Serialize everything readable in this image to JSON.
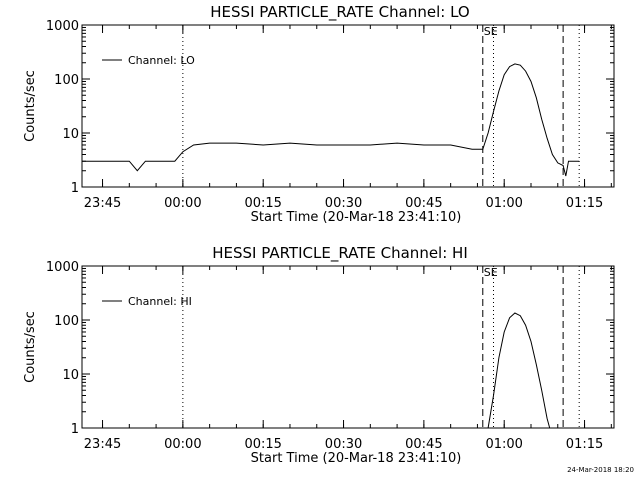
{
  "footer": {
    "timestamp": "24-Mar-2018 18:20"
  },
  "chart_data": [
    {
      "type": "line",
      "title": "HESSI PARTICLE_RATE Channel: LO",
      "xlabel": "Start Time (20-Mar-18 23:41:10)",
      "ylabel": "Counts/sec",
      "yscale": "log",
      "ylim": [
        1,
        1000
      ],
      "xlim": [
        "23:41:10",
        "01:20:30"
      ],
      "xticks": [
        "23:45",
        "00:00",
        "00:15",
        "00:30",
        "00:45",
        "01:00",
        "01:15"
      ],
      "yticks": [
        "1",
        "10",
        "100",
        "1000"
      ],
      "legend": {
        "position": "top-left",
        "entries": [
          "Channel: LO"
        ]
      },
      "markers": [
        {
          "time": "00:00",
          "style": "dotted"
        },
        {
          "time": "00:56",
          "style": "dashed",
          "label": "SE"
        },
        {
          "time": "00:58",
          "style": "dotted"
        },
        {
          "time": "01:11",
          "style": "dashed"
        },
        {
          "time": "01:14",
          "style": "dotted"
        }
      ],
      "series": [
        {
          "name": "Channel: LO",
          "points": [
            [
              "23:41:10",
              3
            ],
            [
              "23:44:00",
              3
            ],
            [
              "23:47:00",
              3
            ],
            [
              "23:50:00",
              3
            ],
            [
              "23:51:30",
              2
            ],
            [
              "23:53:00",
              3
            ],
            [
              "23:56:00",
              3
            ],
            [
              "23:58:30",
              3
            ],
            [
              "00:00:00",
              4.5
            ],
            [
              "00:02:00",
              6
            ],
            [
              "00:05:00",
              6.5
            ],
            [
              "00:10:00",
              6.5
            ],
            [
              "00:15:00",
              6
            ],
            [
              "00:20:00",
              6.5
            ],
            [
              "00:25:00",
              6
            ],
            [
              "00:30:00",
              6
            ],
            [
              "00:35:00",
              6
            ],
            [
              "00:40:00",
              6.5
            ],
            [
              "00:45:00",
              6
            ],
            [
              "00:50:00",
              6
            ],
            [
              "00:54:00",
              5
            ],
            [
              "00:56:00",
              5
            ],
            [
              "00:57:00",
              10
            ],
            [
              "00:58:00",
              25
            ],
            [
              "00:59:00",
              60
            ],
            [
              "01:00:00",
              120
            ],
            [
              "01:01:00",
              170
            ],
            [
              "01:02:00",
              190
            ],
            [
              "01:03:00",
              180
            ],
            [
              "01:04:00",
              140
            ],
            [
              "01:05:00",
              90
            ],
            [
              "01:06:00",
              45
            ],
            [
              "01:07:00",
              18
            ],
            [
              "01:08:00",
              8
            ],
            [
              "01:09:00",
              4
            ],
            [
              "01:10:00",
              2.8
            ],
            [
              "01:11:00",
              2.5
            ],
            [
              "01:11:30",
              1.6
            ],
            [
              "01:12:00",
              3
            ],
            [
              "01:14:00",
              3
            ]
          ]
        }
      ]
    },
    {
      "type": "line",
      "title": "HESSI PARTICLE_RATE Channel: HI",
      "xlabel": "Start Time (20-Mar-18 23:41:10)",
      "ylabel": "Counts/sec",
      "yscale": "log",
      "ylim": [
        1,
        1000
      ],
      "xlim": [
        "23:41:10",
        "01:20:30"
      ],
      "xticks": [
        "23:45",
        "00:00",
        "00:15",
        "00:30",
        "00:45",
        "01:00",
        "01:15"
      ],
      "yticks": [
        "1",
        "10",
        "100",
        "1000"
      ],
      "legend": {
        "position": "top-left",
        "entries": [
          "Channel: HI"
        ]
      },
      "markers": [
        {
          "time": "00:00",
          "style": "dotted"
        },
        {
          "time": "00:56",
          "style": "dashed",
          "label": "SE"
        },
        {
          "time": "00:58",
          "style": "dotted"
        },
        {
          "time": "01:11",
          "style": "dashed"
        },
        {
          "time": "01:14",
          "style": "dotted"
        }
      ],
      "series": [
        {
          "name": "Channel: HI",
          "points": [
            [
              "00:57:00",
              1
            ],
            [
              "00:58:00",
              4
            ],
            [
              "00:59:00",
              20
            ],
            [
              "01:00:00",
              60
            ],
            [
              "01:01:00",
              110
            ],
            [
              "01:02:00",
              135
            ],
            [
              "01:03:00",
              120
            ],
            [
              "01:04:00",
              80
            ],
            [
              "01:05:00",
              40
            ],
            [
              "01:06:00",
              15
            ],
            [
              "01:07:00",
              5
            ],
            [
              "01:08:00",
              1.5
            ],
            [
              "01:08:30",
              1
            ]
          ]
        }
      ]
    }
  ]
}
